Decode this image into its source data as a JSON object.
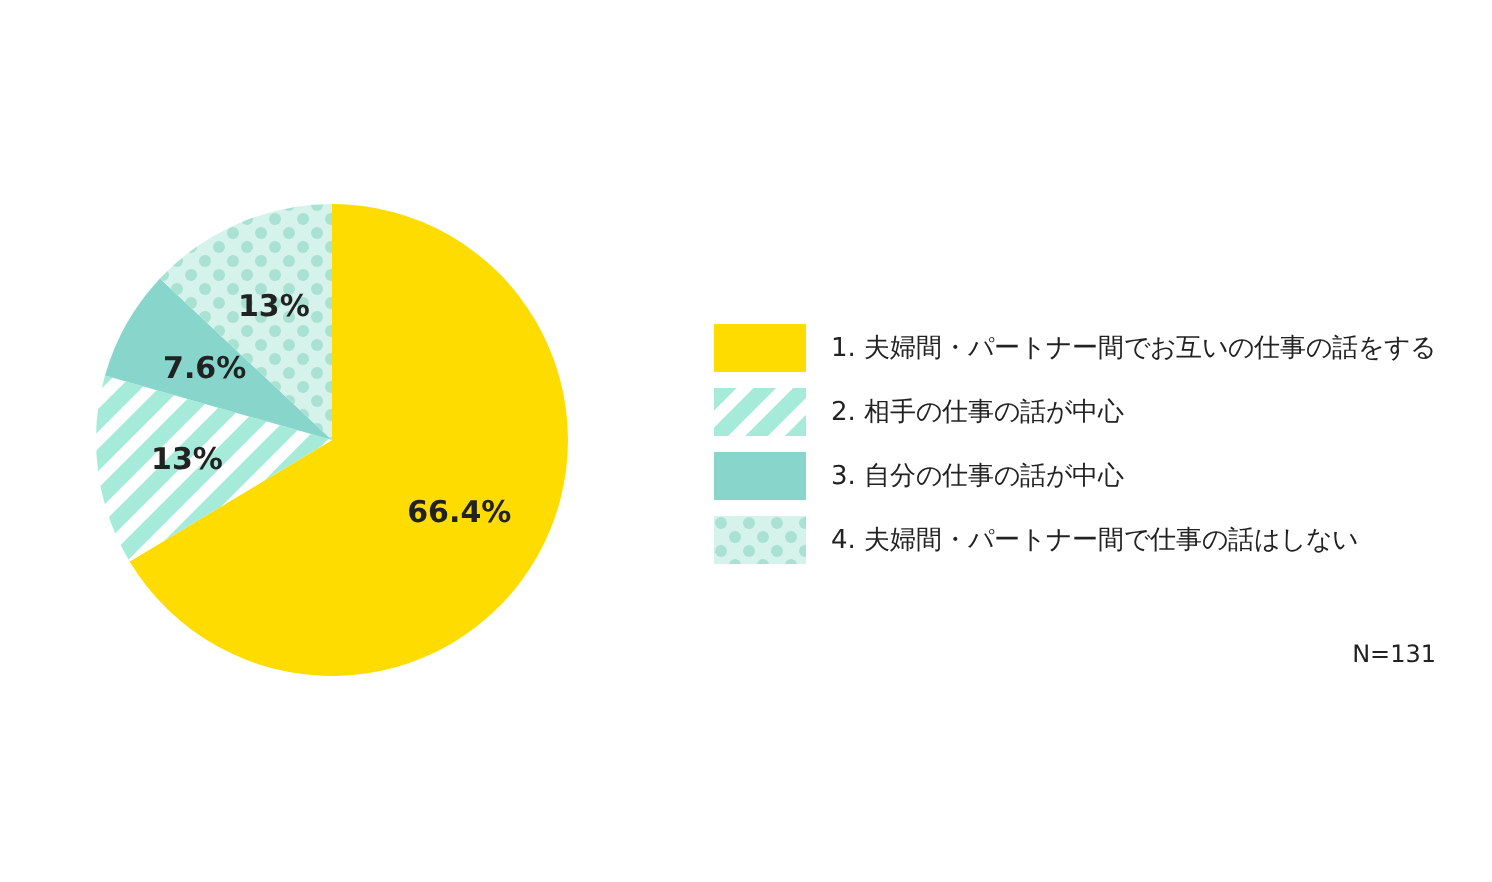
{
  "chart_data": {
    "type": "pie",
    "categories": [
      "1. 夫婦間・パートナー間でお互いの仕事の話をする",
      "2. 相手の仕事の話が中心",
      "3. 自分の仕事の話が中心",
      "4. 夫婦間・パートナー間で仕事の話はしない"
    ],
    "values": [
      66.4,
      13,
      7.6,
      13
    ],
    "value_labels": [
      "66.4%",
      "13%",
      "7.6%",
      "13%"
    ],
    "colors": [
      "#ffdc00",
      "#a6ebd9",
      "#88d6cb",
      "#d5f3eb"
    ],
    "legend": "right",
    "annotations": [
      "N=131"
    ]
  }
}
